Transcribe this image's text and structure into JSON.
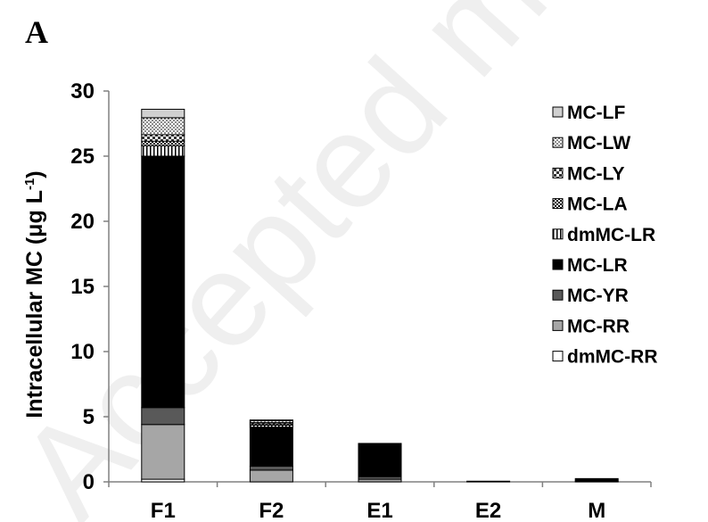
{
  "panel_label": "A",
  "watermark": "Accepted manuscript",
  "chart_data": {
    "type": "bar",
    "stacked": true,
    "categories": [
      "F1",
      "F2",
      "E1",
      "E2",
      "M"
    ],
    "ylabel": "Intracellular MC (μg L",
    "ylabel_sup": "-1",
    "ylabel_close": ")",
    "ylim": [
      0,
      30
    ],
    "yticks": [
      0,
      5,
      10,
      15,
      20,
      25,
      30
    ],
    "grid": false,
    "legend_position": "right",
    "series": [
      {
        "name": "dmMC-RR",
        "pattern": "white",
        "values": [
          0.2,
          0.0,
          0.0,
          0.0,
          0.0
        ]
      },
      {
        "name": "MC-RR",
        "pattern": "lightgray",
        "values": [
          4.2,
          0.9,
          0.2,
          0.05,
          0.05
        ]
      },
      {
        "name": "MC-YR",
        "pattern": "darkgray",
        "values": [
          1.3,
          0.3,
          0.2,
          0.0,
          0.0
        ]
      },
      {
        "name": "MC-LR",
        "pattern": "black",
        "values": [
          19.3,
          3.0,
          2.55,
          0.0,
          0.2
        ]
      },
      {
        "name": "dmMC-LR",
        "pattern": "vstripes",
        "values": [
          0.8,
          0.15,
          0.0,
          0.0,
          0.0
        ]
      },
      {
        "name": "MC-LA",
        "pattern": "checker",
        "values": [
          0.35,
          0.1,
          0.0,
          0.0,
          0.0
        ]
      },
      {
        "name": "MC-LY",
        "pattern": "checker-light",
        "values": [
          0.5,
          0.1,
          0.0,
          0.0,
          0.0
        ]
      },
      {
        "name": "MC-LW",
        "pattern": "dots",
        "values": [
          1.3,
          0.15,
          0.0,
          0.0,
          0.0
        ]
      },
      {
        "name": "MC-LF",
        "pattern": "lightgray2",
        "values": [
          0.65,
          0.05,
          0.0,
          0.0,
          0.0
        ]
      }
    ],
    "legend_order": [
      "MC-LF",
      "MC-LW",
      "MC-LY",
      "MC-LA",
      "dmMC-LR",
      "MC-LR",
      "MC-YR",
      "MC-RR",
      "dmMC-RR"
    ]
  }
}
